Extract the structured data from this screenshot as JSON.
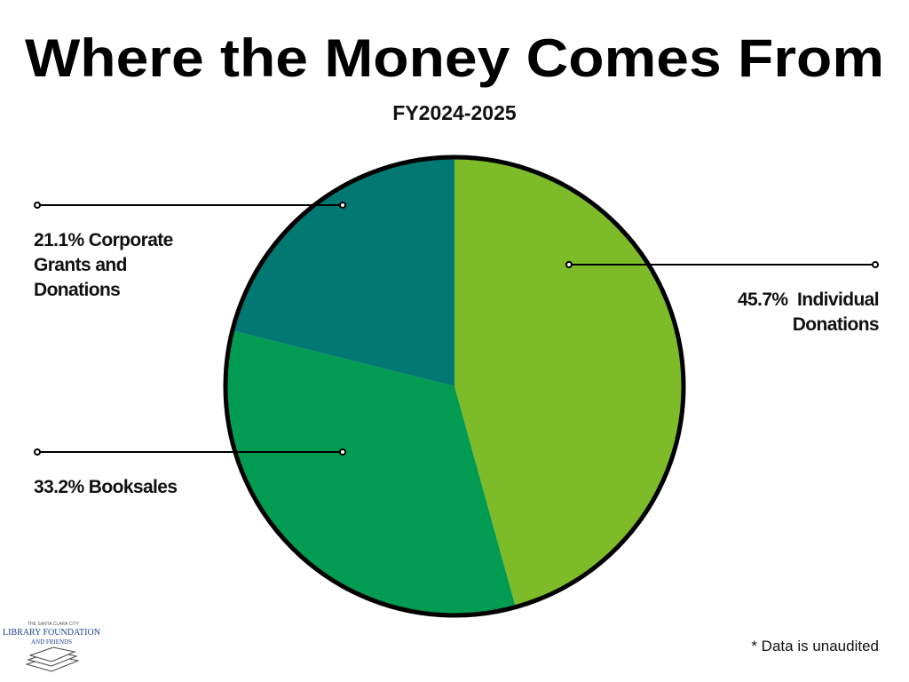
{
  "chart_data": {
    "type": "pie",
    "title": "Where the Money Comes From",
    "subtitle": "FY2024-2025",
    "categories": [
      "Individual Donations",
      "Booksales",
      "Corporate Grants and Donations"
    ],
    "values": [
      45.7,
      33.2,
      21.1
    ],
    "value_labels": [
      "45.7%",
      "33.2%",
      "21.1%"
    ],
    "colors": [
      "#7dbb28",
      "#029b52",
      "#017872"
    ],
    "footnote": "* Data is unaudited"
  },
  "logo": {
    "line1": "THE SANTA CLARA CITY",
    "line2": "LIBRARY FOUNDATION",
    "line3": "AND FRIENDS"
  }
}
